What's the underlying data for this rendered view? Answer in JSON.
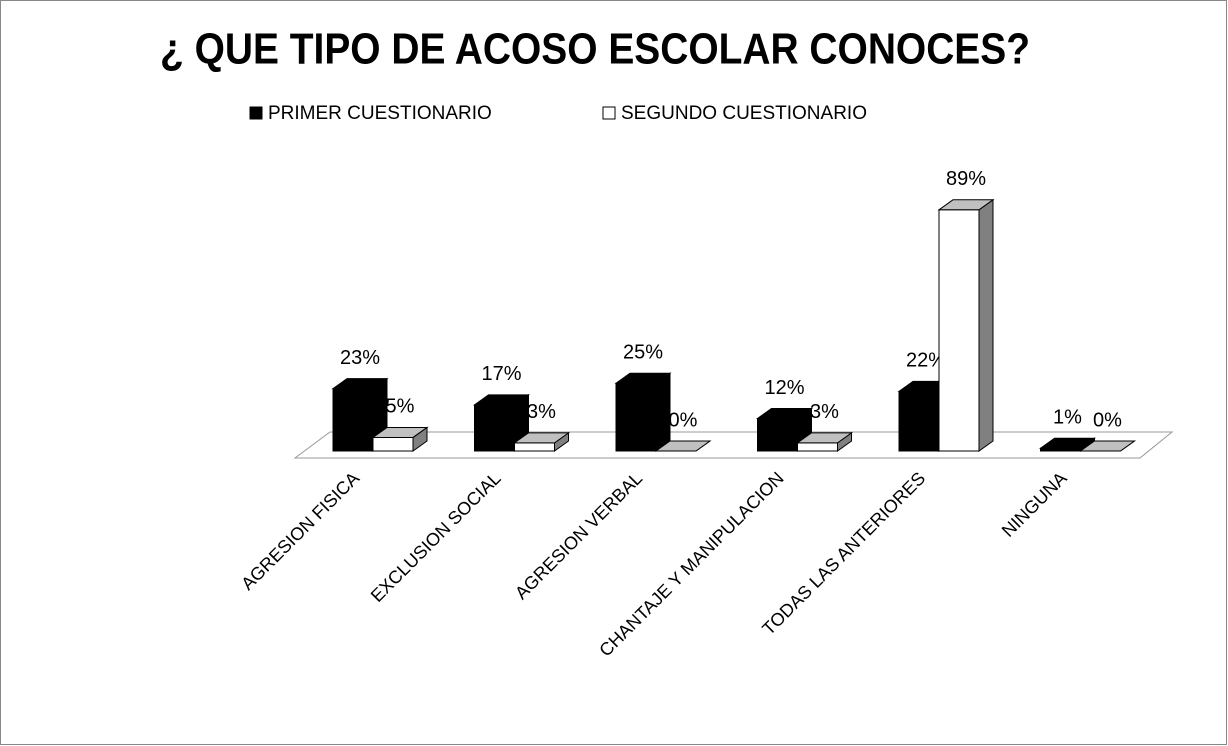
{
  "chart_data": {
    "type": "bar3d",
    "title": "¿ QUE TIPO DE ACOSO ESCOLAR CONOCES?",
    "categories": [
      "AGRESION FISICA",
      "EXCLUSION SOCIAL",
      "AGRESION VERBAL",
      "CHANTAJE Y MANIPULACION",
      "TODAS LAS ANTERIORES",
      "NINGUNA"
    ],
    "series": [
      {
        "name": "PRIMER CUESTIONARIO",
        "color": "#000000",
        "values": [
          23,
          17,
          25,
          12,
          22,
          1
        ],
        "value_labels": [
          "23%",
          "17%",
          "25%",
          "12%",
          "22%",
          "1%"
        ]
      },
      {
        "name": "SEGUNDO CUESTIONARIO",
        "color": "#ffffff",
        "values": [
          5,
          3,
          0,
          3,
          89,
          0
        ],
        "value_labels": [
          "5%",
          "3%",
          "0%",
          "3%",
          "89%",
          "0%"
        ]
      }
    ],
    "legend": "top"
  }
}
